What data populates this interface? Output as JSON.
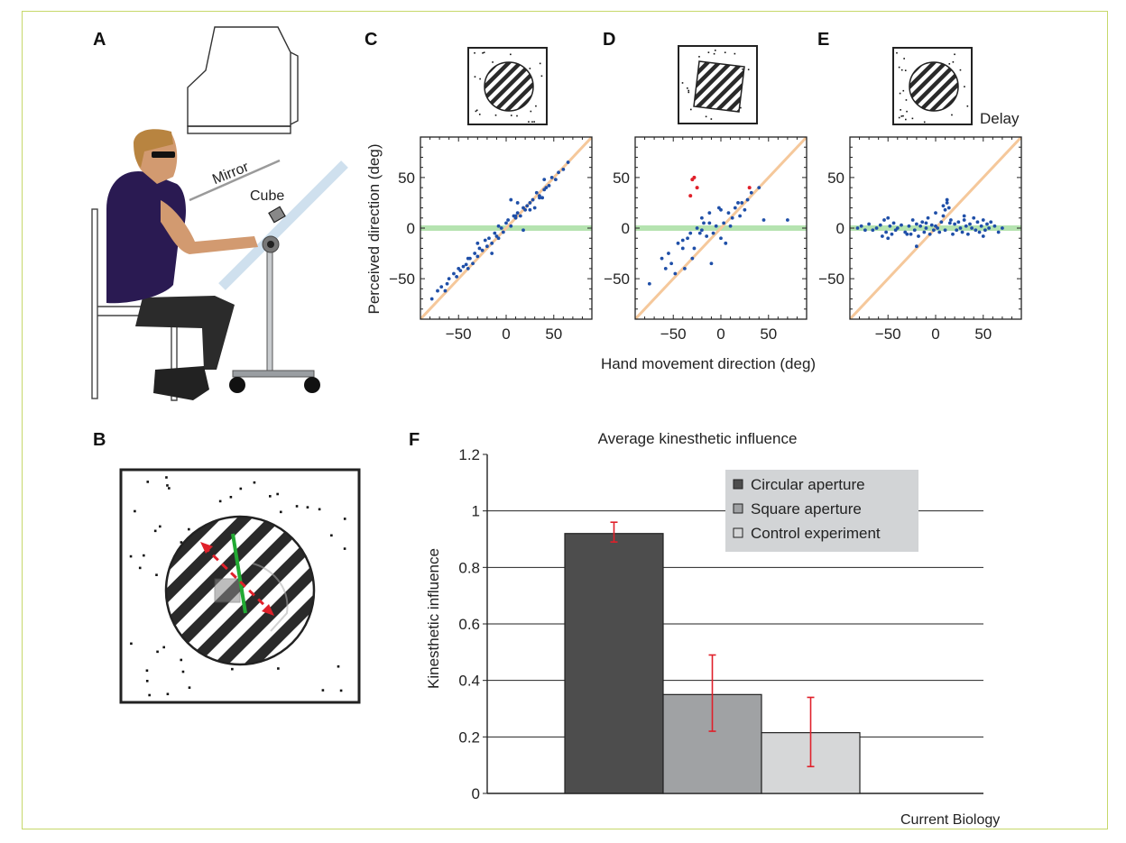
{
  "panel_labels": {
    "a": "A",
    "b": "B",
    "c": "C",
    "d": "D",
    "e": "E",
    "f": "F"
  },
  "illustration": {
    "mirror_label": "Mirror",
    "cube_label": "Cube"
  },
  "inset_e_label": "Delay",
  "footer": "Current Biology",
  "colors": {
    "points": "#1f4fa8",
    "identity_line": "#f5c89b",
    "zero_line": "#b5e3b0",
    "outlier": "#e0202a"
  },
  "chart_data": [
    {
      "type": "scatter",
      "panel": "C",
      "xlabel": "Hand movement direction (deg)",
      "ylabel": "Perceived direction (deg)",
      "xlim": [
        -90,
        90
      ],
      "ylim": [
        -90,
        90
      ],
      "xticks": [
        -50,
        0,
        50
      ],
      "yticks": [
        50,
        0,
        -50
      ],
      "x": [
        -78,
        -72,
        -68,
        -64,
        -60,
        -55,
        -52,
        -50,
        -48,
        -45,
        -42,
        -40,
        -38,
        -35,
        -33,
        -30,
        -28,
        -25,
        -22,
        -20,
        -18,
        -15,
        -12,
        -10,
        -8,
        -5,
        -3,
        0,
        2,
        5,
        8,
        10,
        12,
        15,
        18,
        20,
        22,
        25,
        28,
        30,
        32,
        35,
        38,
        40,
        42,
        45,
        48,
        52,
        55,
        60,
        65,
        -30,
        -15,
        5,
        12,
        -8,
        25,
        35,
        -62,
        -40,
        10,
        18,
        40
      ],
      "y": [
        -70,
        -62,
        -58,
        -62,
        -50,
        -45,
        -48,
        -40,
        -42,
        -38,
        -36,
        -40,
        -30,
        -35,
        -25,
        -28,
        -20,
        -22,
        -12,
        -18,
        -10,
        -15,
        -5,
        -8,
        2,
        0,
        -4,
        5,
        8,
        2,
        12,
        10,
        15,
        12,
        20,
        18,
        22,
        25,
        28,
        20,
        35,
        32,
        30,
        38,
        40,
        42,
        50,
        48,
        55,
        58,
        65,
        -15,
        -25,
        28,
        25,
        -10,
        18,
        30,
        -55,
        -30,
        12,
        -2,
        48
      ]
    },
    {
      "type": "scatter",
      "panel": "D",
      "xlabel": "",
      "ylabel": "",
      "xlim": [
        -90,
        90
      ],
      "ylim": [
        -90,
        90
      ],
      "xticks": [
        -50,
        0,
        50
      ],
      "yticks": [
        50,
        0,
        -50
      ],
      "x": [
        -75,
        -62,
        -58,
        -55,
        -52,
        -48,
        -45,
        -40,
        -38,
        -35,
        -32,
        -30,
        -28,
        -25,
        -22,
        -20,
        -18,
        -15,
        -12,
        -10,
        -8,
        -5,
        -2,
        0,
        3,
        5,
        8,
        10,
        12,
        15,
        18,
        20,
        25,
        28,
        32,
        40,
        45,
        70,
        -20,
        -12,
        0,
        22,
        -40
      ],
      "y": [
        -55,
        -30,
        -40,
        -25,
        -35,
        -45,
        -15,
        -20,
        -40,
        -10,
        -5,
        -30,
        -20,
        0,
        -5,
        10,
        5,
        -8,
        15,
        -35,
        -5,
        2,
        20,
        -10,
        5,
        -15,
        15,
        2,
        10,
        20,
        25,
        12,
        18,
        28,
        35,
        40,
        8,
        8,
        -2,
        5,
        18,
        25,
        -12
      ],
      "outliers_x": [
        -32,
        -30,
        -28,
        -25,
        30
      ],
      "outliers_y": [
        32,
        48,
        50,
        40,
        40
      ]
    },
    {
      "type": "scatter",
      "panel": "E",
      "xlabel": "",
      "ylabel": "",
      "xlim": [
        -90,
        90
      ],
      "ylim": [
        -90,
        90
      ],
      "xticks": [
        -50,
        0,
        50
      ],
      "yticks": [
        50,
        0,
        -50
      ],
      "x": [
        -82,
        -78,
        -74,
        -70,
        -66,
        -62,
        -58,
        -56,
        -54,
        -52,
        -50,
        -48,
        -46,
        -44,
        -42,
        -40,
        -36,
        -32,
        -28,
        -26,
        -24,
        -22,
        -20,
        -18,
        -16,
        -14,
        -12,
        -10,
        -8,
        -6,
        -4,
        -2,
        0,
        2,
        4,
        6,
        8,
        10,
        12,
        14,
        16,
        18,
        20,
        22,
        24,
        26,
        28,
        30,
        32,
        34,
        36,
        38,
        40,
        42,
        44,
        46,
        48,
        50,
        52,
        54,
        56,
        58,
        62,
        66,
        70,
        -50,
        -30,
        -10,
        10,
        30,
        50,
        8,
        12,
        15,
        -20,
        0
      ],
      "y": [
        0,
        2,
        -2,
        4,
        -2,
        0,
        3,
        -8,
        8,
        -4,
        10,
        2,
        -6,
        5,
        -2,
        0,
        3,
        -4,
        2,
        -6,
        8,
        -2,
        4,
        -8,
        2,
        6,
        -4,
        0,
        10,
        -6,
        3,
        -2,
        15,
        0,
        -4,
        6,
        12,
        -2,
        28,
        20,
        8,
        -6,
        4,
        -2,
        6,
        0,
        -4,
        8,
        2,
        -6,
        4,
        0,
        10,
        -2,
        6,
        -4,
        2,
        8,
        -2,
        4,
        0,
        6,
        2,
        -4,
        0,
        -10,
        -6,
        5,
        18,
        12,
        -8,
        22,
        25,
        5,
        -18,
        2
      ]
    },
    {
      "type": "bar",
      "panel": "F",
      "title": "Average kinesthetic influence",
      "ylabel": "Kinesthetic influence",
      "ylim": [
        0,
        1.2
      ],
      "yticks": [
        "0",
        "0.2",
        "0.4",
        "0.6",
        "0.8",
        "1",
        "1.2"
      ],
      "legend_position": "top-right",
      "series": [
        {
          "name": "Circular aperture",
          "value": 0.92,
          "err_low": 0.89,
          "err_high": 0.96,
          "color": "#4d4d4d"
        },
        {
          "name": "Square aperture",
          "value": 0.35,
          "err_low": 0.22,
          "err_high": 0.49,
          "color": "#a0a2a4"
        },
        {
          "name": "Control experiment",
          "value": 0.215,
          "err_low": 0.095,
          "err_high": 0.34,
          "color": "#d6d7d8"
        }
      ]
    }
  ]
}
